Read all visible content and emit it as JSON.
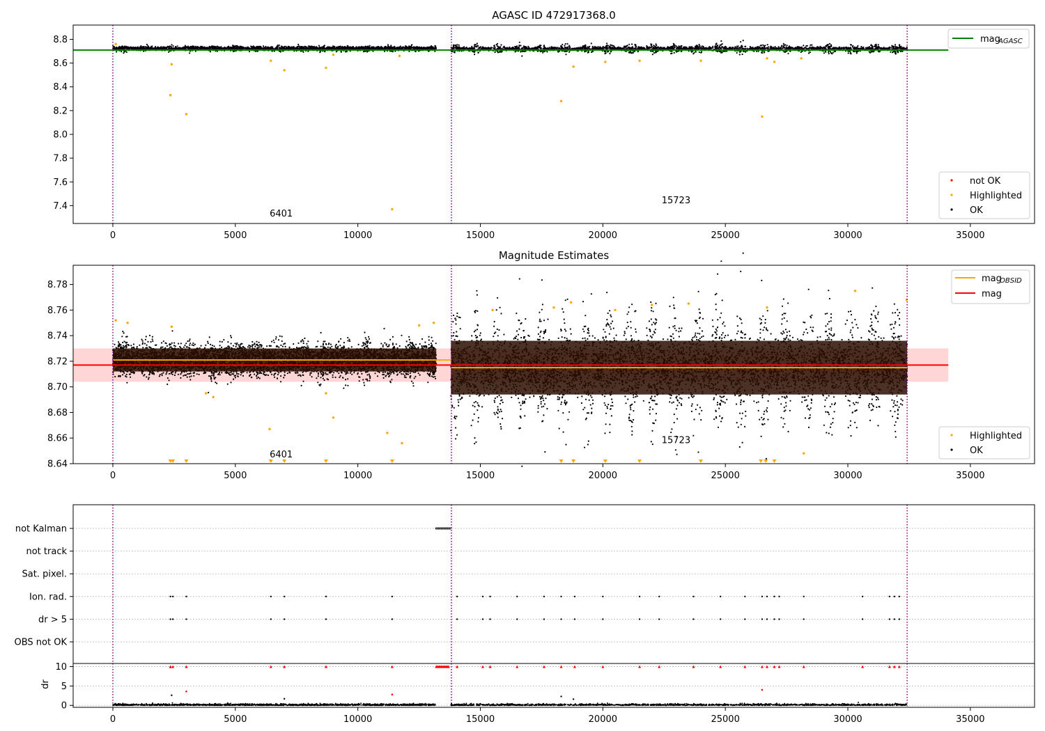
{
  "chart_data": [
    {
      "type": "scatter",
      "title": "AGASC ID 472917368.0",
      "xlabel": "",
      "ylabel": "",
      "xlim": [
        -1620,
        37620
      ],
      "ylim": [
        7.25,
        8.92
      ],
      "xticks": [
        0,
        5000,
        10000,
        15000,
        20000,
        25000,
        30000,
        35000
      ],
      "xtick_labels": [
        "0",
        "5000",
        "10000",
        "15000",
        "20000",
        "25000",
        "30000",
        "35000"
      ],
      "yticks": [
        7.4,
        7.6,
        7.8,
        8.0,
        8.2,
        8.4,
        8.6,
        8.8
      ],
      "ytick_labels": [
        "7.4",
        "7.6",
        "7.8",
        "8.0",
        "8.2",
        "8.4",
        "8.6",
        "8.8"
      ],
      "obs_boundaries": [
        0,
        13820,
        32420
      ],
      "obs_labels": [
        {
          "text": "6401",
          "x": 6401,
          "y": 7.31
        },
        {
          "text": "15723",
          "x": 22400,
          "y": 7.42
        }
      ],
      "reference_lines": [
        {
          "name": "mag_AGASC",
          "y": 8.71,
          "x": [
            -1620,
            34100
          ],
          "color": "#008000"
        }
      ],
      "ok_bands": [
        {
          "x": [
            0,
            13200
          ],
          "center": 8.722,
          "halfwidth": 0.018,
          "mode": "smooth"
        },
        {
          "x": [
            13800,
            32420
          ],
          "center": 8.72,
          "halfwidth": 0.022,
          "mode": "wavy"
        }
      ],
      "highlighted_points": [
        [
          2350,
          8.33
        ],
        [
          2400,
          8.59
        ],
        [
          3000,
          8.17
        ],
        [
          6450,
          8.62
        ],
        [
          7000,
          8.54
        ],
        [
          8700,
          8.56
        ],
        [
          11400,
          7.37
        ],
        [
          11700,
          8.66
        ],
        [
          18300,
          8.28
        ],
        [
          18800,
          8.57
        ],
        [
          20100,
          8.61
        ],
        [
          21500,
          8.62
        ],
        [
          24000,
          8.62
        ],
        [
          26500,
          8.15
        ],
        [
          26700,
          8.64
        ],
        [
          27000,
          8.61
        ],
        [
          28100,
          8.64
        ],
        [
          120,
          8.76
        ],
        [
          9000,
          8.67
        ]
      ],
      "legend": {
        "placement": "lower-right",
        "entries": [
          {
            "label": "not OK",
            "color": "#ff0000"
          },
          {
            "label": "Highlighted",
            "color": "#ffa500"
          },
          {
            "label": "OK",
            "color": "#000000"
          }
        ]
      },
      "legend_top": {
        "placement": "top-right",
        "entries": [
          {
            "label": "mag",
            "sub": "AGASC",
            "color": "#008000"
          }
        ]
      },
      "grid": false
    },
    {
      "type": "scatter",
      "title": "Magnitude Estimates",
      "xlabel": "",
      "ylabel": "",
      "xlim": [
        -1620,
        37620
      ],
      "ylim": [
        8.64,
        8.795
      ],
      "xticks": [
        0,
        5000,
        10000,
        15000,
        20000,
        25000,
        30000,
        35000
      ],
      "xtick_labels": [
        "0",
        "5000",
        "10000",
        "15000",
        "20000",
        "25000",
        "30000",
        "35000"
      ],
      "yticks": [
        8.64,
        8.66,
        8.68,
        8.7,
        8.72,
        8.74,
        8.76,
        8.78
      ],
      "ytick_labels": [
        "8.64",
        "8.66",
        "8.68",
        "8.70",
        "8.72",
        "8.74",
        "8.76",
        "8.78"
      ],
      "obs_boundaries": [
        0,
        13820,
        32420
      ],
      "obs_labels": [
        {
          "text": "6401",
          "x": 6401,
          "y": 8.645
        },
        {
          "text": "15723",
          "x": 22400,
          "y": 8.656
        }
      ],
      "mag_band": {
        "y": [
          8.704,
          8.73
        ],
        "x": [
          -1620,
          34100
        ],
        "color": "#ffd6d6"
      },
      "reference_lines": [
        {
          "name": "mag_OBSID",
          "segments": [
            {
              "x": [
                0,
                13820
              ],
              "y": 8.721
            },
            {
              "x": [
                13820,
                32420
              ],
              "y": 8.715
            }
          ],
          "color": "#ffa500"
        },
        {
          "name": "mag",
          "y": 8.717,
          "x": [
            -1620,
            34100
          ],
          "color": "#ff0000"
        }
      ],
      "ok_bands": [
        {
          "x": [
            0,
            13200
          ],
          "center": 8.721,
          "halfwidth": 0.012,
          "mode": "smooth"
        },
        {
          "x": [
            13800,
            32420
          ],
          "center": 8.715,
          "halfwidth": 0.028,
          "mode": "wavy"
        }
      ],
      "highlighted_points": [
        [
          120,
          8.752
        ],
        [
          600,
          8.75
        ],
        [
          2400,
          8.747
        ],
        [
          3800,
          8.695
        ],
        [
          4100,
          8.692
        ],
        [
          6400,
          8.667
        ],
        [
          8700,
          8.695
        ],
        [
          9000,
          8.676
        ],
        [
          11200,
          8.664
        ],
        [
          11800,
          8.656
        ],
        [
          12500,
          8.748
        ],
        [
          13100,
          8.75
        ],
        [
          15500,
          8.76
        ],
        [
          18000,
          8.762
        ],
        [
          18700,
          8.766
        ],
        [
          20500,
          8.76
        ],
        [
          22000,
          8.764
        ],
        [
          23500,
          8.765
        ],
        [
          26700,
          8.762
        ],
        [
          28200,
          8.648
        ],
        [
          30300,
          8.775
        ],
        [
          32400,
          8.768
        ]
      ],
      "below_range_markers": [
        2350,
        2450,
        3000,
        6450,
        7000,
        8700,
        11400,
        18300,
        18800,
        20100,
        21500,
        24000,
        26450,
        26650,
        27000
      ],
      "legend": {
        "placement": "lower-right",
        "entries": [
          {
            "label": "Highlighted",
            "color": "#ffa500"
          },
          {
            "label": "OK",
            "color": "#000000"
          }
        ]
      },
      "legend_top": {
        "placement": "top-right",
        "entries": [
          {
            "label": "mag",
            "sub": "OBSID",
            "color": "#ffa500"
          },
          {
            "label": "mag",
            "sub": "",
            "color": "#ff0000"
          }
        ]
      },
      "grid": false
    },
    {
      "type": "scatter",
      "title": "",
      "xlabel": "",
      "ylabel": "",
      "xlim": [
        -1620,
        37620
      ],
      "xticks": [
        0,
        5000,
        10000,
        15000,
        20000,
        25000,
        30000,
        35000
      ],
      "xtick_labels": [
        "0",
        "5000",
        "10000",
        "15000",
        "20000",
        "25000",
        "30000",
        "35000"
      ],
      "flag_rows": [
        "not Kalman",
        "not track",
        "Sat. pixel.",
        "Ion. rad.",
        "dr > 5",
        "OBS not OK"
      ],
      "not_kalman_x": [
        13200,
        13800
      ],
      "flag_events_x": [
        2350,
        2450,
        3000,
        6450,
        7000,
        8700,
        11400,
        14050,
        15100,
        15400,
        16500,
        17600,
        18300,
        18850,
        20000,
        21500,
        22300,
        23700,
        24800,
        25800,
        26500,
        26700,
        27000,
        27200,
        28200,
        30600,
        31700,
        31900,
        32100
      ]
    },
    {
      "type": "scatter",
      "title": "",
      "xlabel": "",
      "ylabel": "dr",
      "xlim": [
        -1620,
        37620
      ],
      "ylim": [
        -0.5,
        10.8
      ],
      "xticks": [
        0,
        5000,
        10000,
        15000,
        20000,
        25000,
        30000,
        35000
      ],
      "xtick_labels": [
        "0",
        "5000",
        "10000",
        "15000",
        "20000",
        "25000",
        "30000",
        "35000"
      ],
      "yticks": [
        0,
        5,
        10
      ],
      "ytick_labels": [
        "0",
        "5",
        "10"
      ],
      "capped_x": [
        2350,
        2450,
        3000,
        6450,
        7000,
        8700,
        11400,
        13700,
        14050,
        15100,
        15400,
        16500,
        17600,
        18300,
        18850,
        20000,
        21500,
        22300,
        23700,
        24800,
        25800,
        26500,
        26700,
        27000,
        27200,
        28200,
        30600,
        31700,
        31900,
        32100
      ],
      "red_points": [
        [
          2350,
          9.8
        ],
        [
          3000,
          3.6
        ],
        [
          11400,
          2.8
        ],
        [
          26500,
          4.0
        ]
      ],
      "black_outliers": [
        [
          2400,
          2.6
        ],
        [
          7000,
          1.7
        ],
        [
          18300,
          2.3
        ],
        [
          18800,
          1.6
        ]
      ],
      "grid": true
    }
  ]
}
